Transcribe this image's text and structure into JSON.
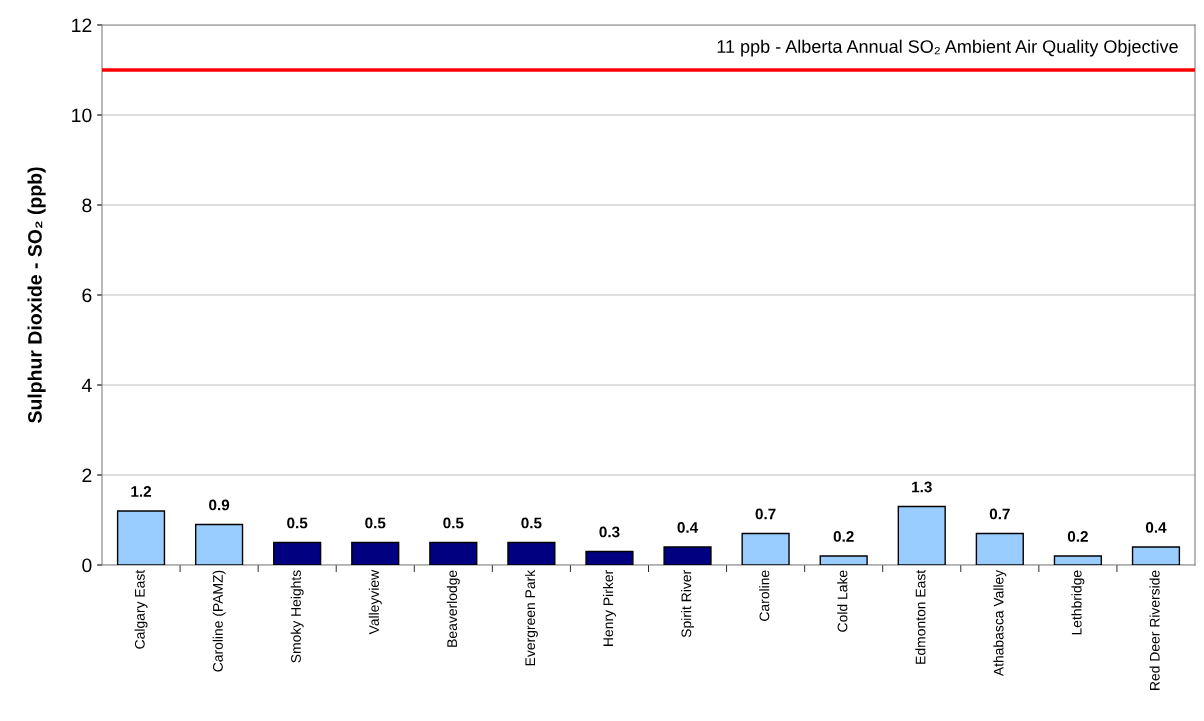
{
  "chart_data": {
    "type": "bar",
    "ylabel": "Sulphur Dioxide - SO₂ (ppb)",
    "categories": [
      "Calgary East",
      "Caroline (PAMZ)",
      "Smoky Heights",
      "Valleyview",
      "Beaverlodge",
      "Evergreen Park",
      "Henry Pirker",
      "Spirit River",
      "Caroline",
      "Cold Lake",
      "Edmonton East",
      "Athabasca Valley",
      "Lethbridge",
      "Red Deer Riverside"
    ],
    "values": [
      1.2,
      0.9,
      0.5,
      0.5,
      0.5,
      0.5,
      0.3,
      0.4,
      0.7,
      0.2,
      1.3,
      0.7,
      0.2,
      0.4
    ],
    "colors": [
      "#99ccff",
      "#99ccff",
      "#000080",
      "#000080",
      "#000080",
      "#000080",
      "#000080",
      "#000080",
      "#99ccff",
      "#99ccff",
      "#99ccff",
      "#99ccff",
      "#99ccff",
      "#99ccff"
    ],
    "data_labels": true,
    "ylim": [
      0,
      12
    ],
    "yticks": [
      0,
      2,
      4,
      6,
      8,
      10,
      12
    ],
    "grid": "y",
    "ref_lines": [
      {
        "axis": "y",
        "value": 11,
        "label": "11 ppb - Alberta Annual SO₂ Ambient Air Quality Objective",
        "color": "#ff0000",
        "line_style": "solid"
      }
    ]
  }
}
